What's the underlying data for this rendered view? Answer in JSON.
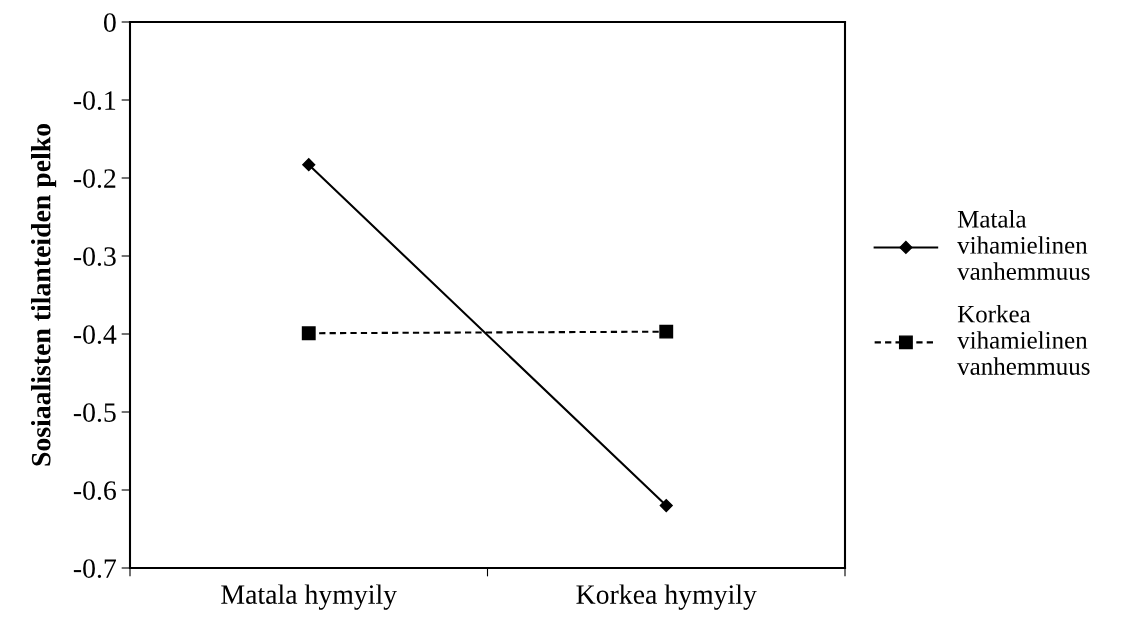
{
  "chart_data": {
    "type": "line",
    "ylabel": "Sosiaalisten tilanteiden pelko",
    "categories": [
      "Matala hymyily",
      "Korkea hymyily"
    ],
    "series": [
      {
        "name": "Matala vihamielinen vanhemmuus",
        "color": "#000000",
        "values": [
          -0.183,
          -0.62
        ],
        "marker": "diamond",
        "line_style": "solid"
      },
      {
        "name": "Korkea vihamielinen vanhemmuus",
        "color": "#000000",
        "values": [
          -0.399,
          -0.397
        ],
        "marker": "square",
        "line_style": "dashed"
      }
    ],
    "ylim": [
      -0.7,
      0
    ],
    "yticks": [
      -0.7,
      -0.6,
      -0.5,
      -0.4,
      -0.3,
      -0.2,
      -0.1,
      0
    ],
    "grid": false,
    "legend": "right"
  }
}
